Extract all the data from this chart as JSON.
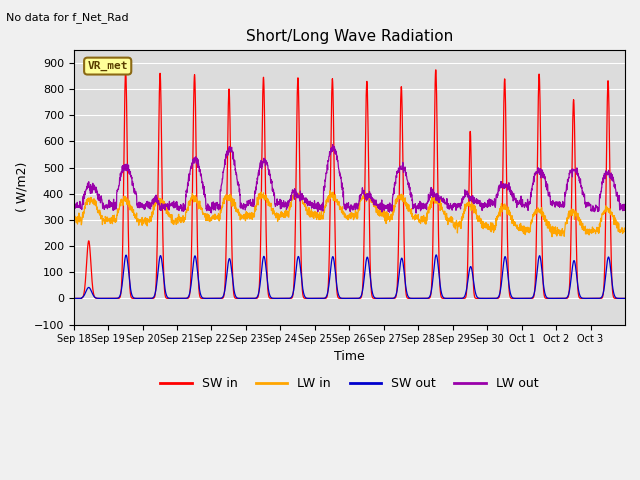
{
  "title": "Short/Long Wave Radiation",
  "top_left_text": "No data for f_Net_Rad",
  "xlabel": "Time",
  "ylabel": "( W/m2)",
  "ylim": [
    -100,
    950
  ],
  "yticks": [
    -100,
    0,
    100,
    200,
    300,
    400,
    500,
    600,
    700,
    800,
    900
  ],
  "plot_bg": "#dcdcdc",
  "fig_bg": "#f0f0f0",
  "legend_labels": [
    "SW in",
    "LW in",
    "SW out",
    "LW out"
  ],
  "legend_colors": [
    "#ff0000",
    "#ffa500",
    "#0000cd",
    "#9900aa"
  ],
  "box_label": "VR_met",
  "box_bg": "#ffff99",
  "box_border": "#8b6914",
  "num_days": 16,
  "xtick_labels": [
    "Sep 18",
    "Sep 19",
    "Sep 20",
    "Sep 21",
    "Sep 22",
    "Sep 23",
    "Sep 24",
    "Sep 25",
    "Sep 26",
    "Sep 27",
    "Sep 28",
    "Sep 29",
    "Sep 30",
    "Oct 1",
    "Oct 2",
    "Oct 3"
  ],
  "sw_in_peaks": [
    220,
    870,
    860,
    855,
    800,
    845,
    843,
    840,
    830,
    810,
    875,
    640,
    840,
    858,
    760,
    832
  ],
  "sw_in_widths": [
    1.0,
    1.2,
    1.2,
    1.2,
    1.2,
    1.2,
    1.2,
    1.2,
    1.2,
    1.2,
    1.2,
    1.0,
    1.2,
    1.2,
    1.2,
    1.2
  ],
  "lw_out_peaks": [
    420,
    500,
    350,
    530,
    570,
    525,
    390,
    575,
    390,
    500,
    390,
    380,
    430,
    490,
    490,
    480
  ],
  "lw_out_night": 355,
  "lw_in_base": 300,
  "sw_out_ratio": 0.19
}
